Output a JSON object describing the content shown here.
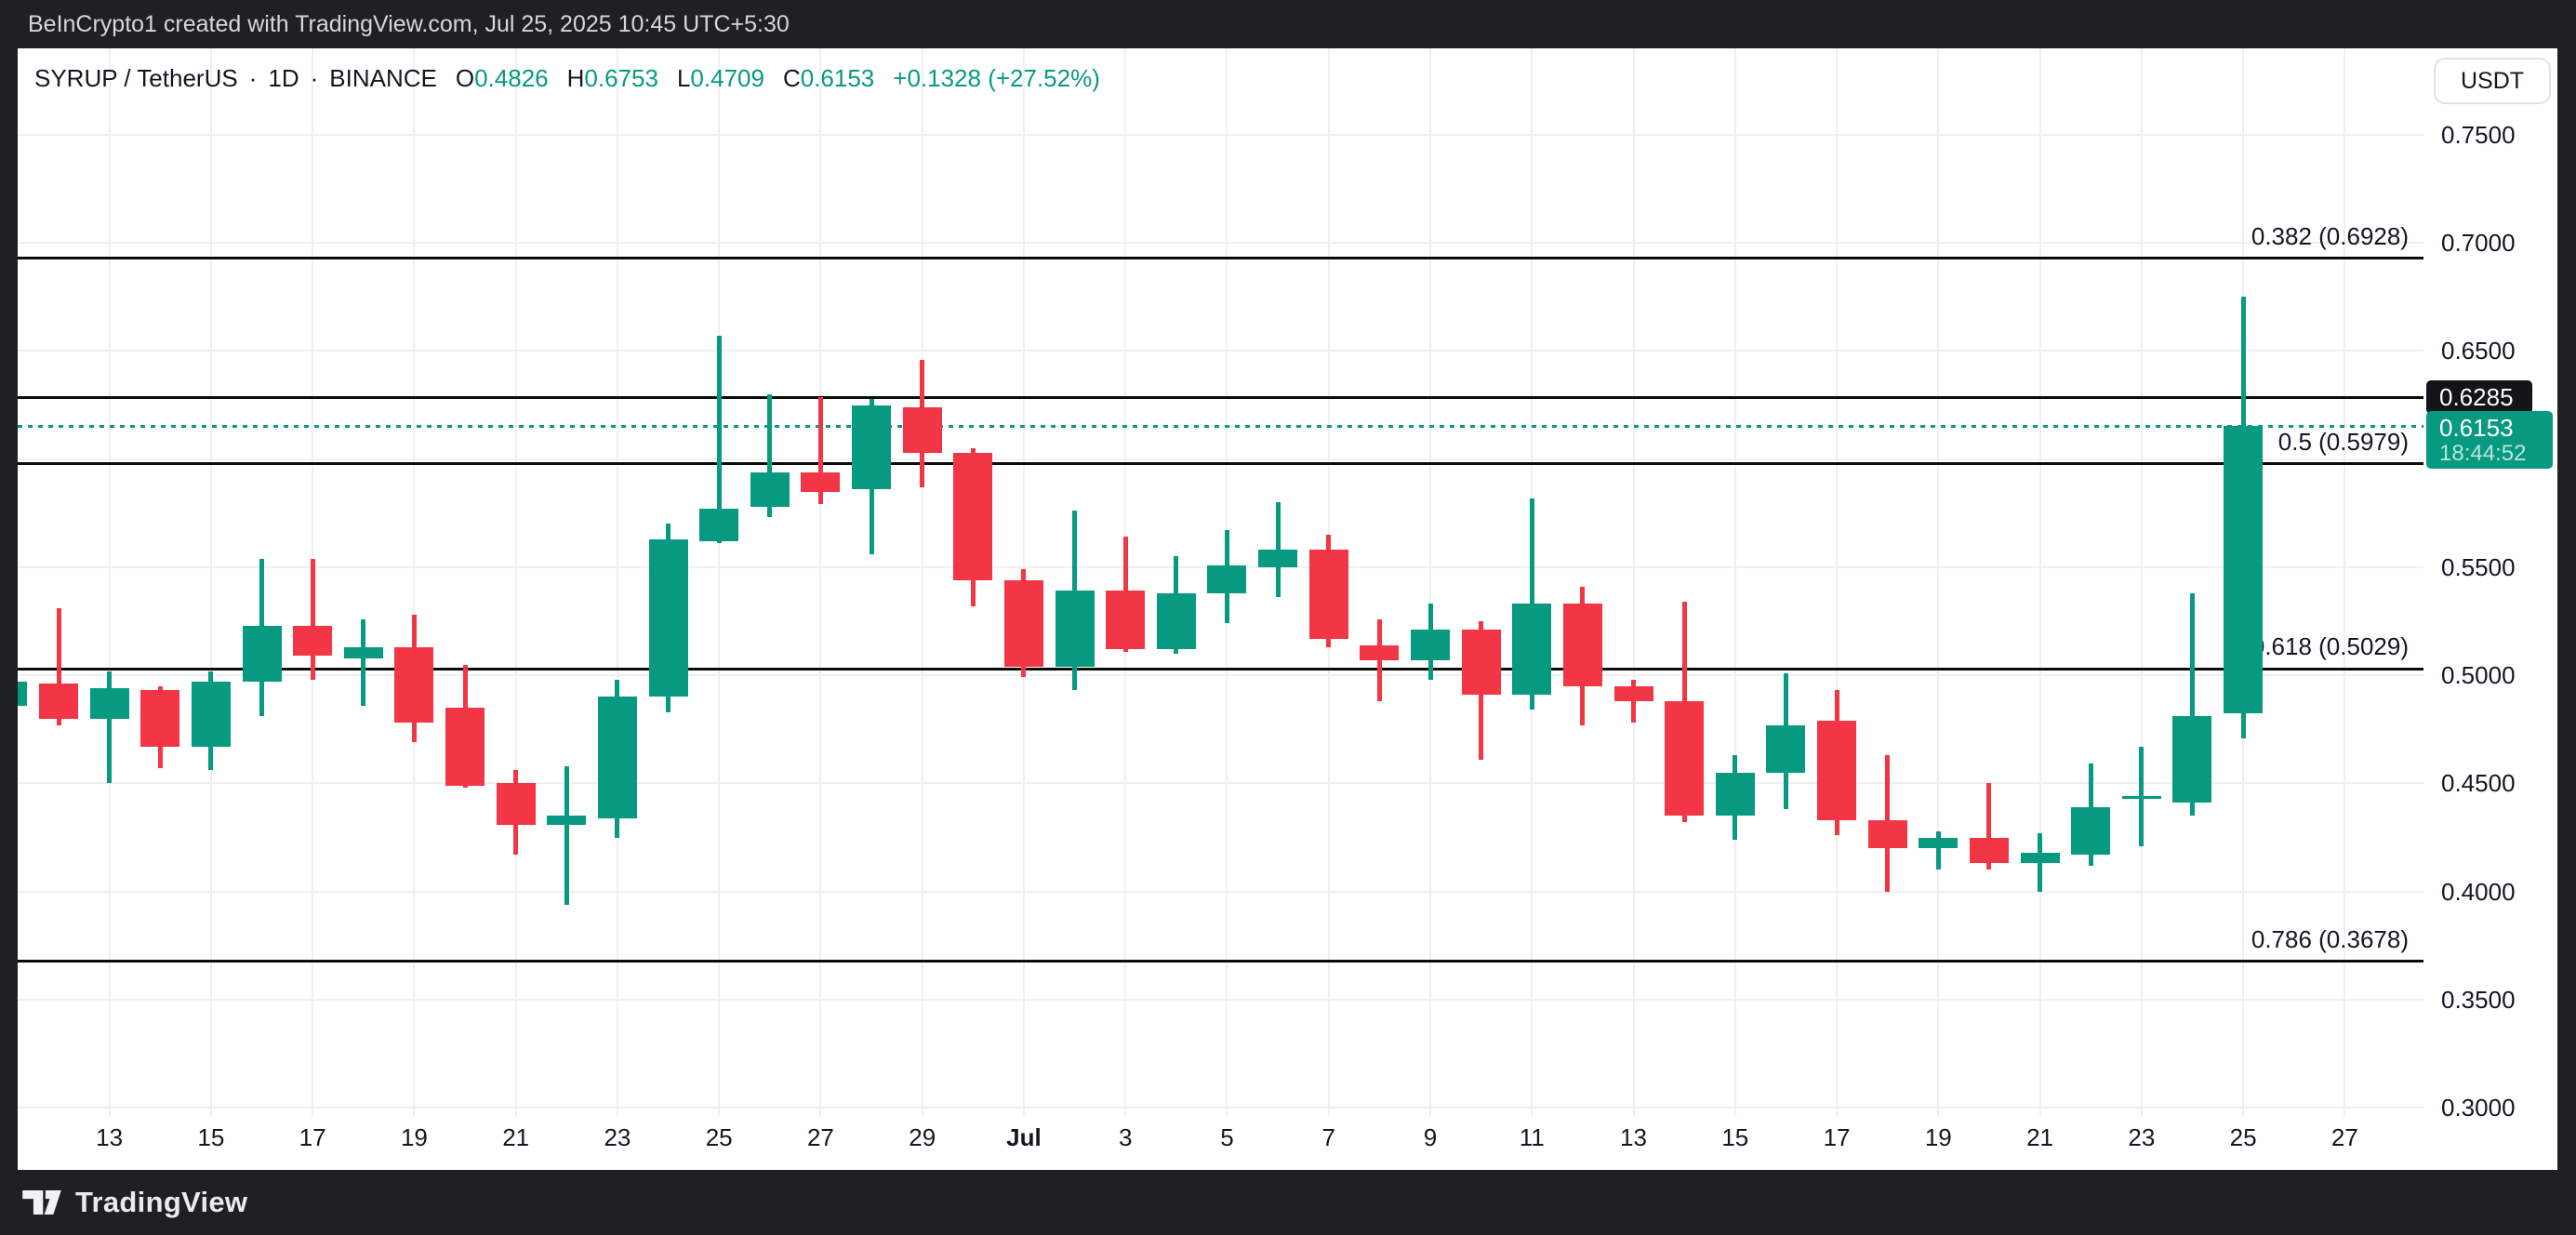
{
  "header": {
    "title": "BeInCrypto1 created with TradingView.com, Jul 25, 2025 10:45 UTC+5:30"
  },
  "toolbar": {
    "currency_button": "USDT"
  },
  "legend": {
    "symbol": "SYRUP / TetherUS",
    "separator": "·",
    "interval": "1D",
    "exchange": "BINANCE",
    "open_label": "O",
    "open": "0.4826",
    "high_label": "H",
    "high": "0.6753",
    "low_label": "L",
    "low": "0.4709",
    "close_label": "C",
    "close": "0.6153",
    "change": "+0.1328 (+27.52%)"
  },
  "footer": {
    "brand": "TradingView"
  },
  "colors": {
    "up": "#089981",
    "down": "#F23645",
    "frame": "#1e2025",
    "grid": "#eef0f3",
    "text": "#131722",
    "level_line": "#0b0b0b",
    "header_text": "#d5d7da"
  },
  "chart_data": {
    "type": "candlestick",
    "title": "SYRUP / TetherUS · 1D · BINANCE",
    "ylabel": "USDT",
    "y_visible_range": [
      0.272,
      0.791
    ],
    "grid": true,
    "price_ticks": [
      {
        "label": "0.7500",
        "price": 0.75
      },
      {
        "label": "0.7000",
        "price": 0.7
      },
      {
        "label": "0.6500",
        "price": 0.65
      },
      {
        "label": "0.5500",
        "price": 0.55
      },
      {
        "label": "0.5000",
        "price": 0.5
      },
      {
        "label": "0.4500",
        "price": 0.45
      },
      {
        "label": "0.4000",
        "price": 0.4
      },
      {
        "label": "0.3500",
        "price": 0.35
      },
      {
        "label": "0.3000",
        "price": 0.3
      }
    ],
    "price_grid": [
      0.75,
      0.7,
      0.65,
      0.6,
      0.55,
      0.5,
      0.45,
      0.4,
      0.35,
      0.3
    ],
    "time_ticks": [
      {
        "label": "13",
        "di": 1
      },
      {
        "label": "15",
        "di": 3
      },
      {
        "label": "17",
        "di": 5
      },
      {
        "label": "19",
        "di": 7
      },
      {
        "label": "21",
        "di": 9
      },
      {
        "label": "23",
        "di": 11
      },
      {
        "label": "25",
        "di": 13
      },
      {
        "label": "27",
        "di": 15
      },
      {
        "label": "29",
        "di": 17
      },
      {
        "label": "Jul",
        "di": 19,
        "bold": true
      },
      {
        "label": "3",
        "di": 21
      },
      {
        "label": "5",
        "di": 23
      },
      {
        "label": "7",
        "di": 25
      },
      {
        "label": "9",
        "di": 27
      },
      {
        "label": "11",
        "di": 29
      },
      {
        "label": "13",
        "di": 31
      },
      {
        "label": "15",
        "di": 33
      },
      {
        "label": "17",
        "di": 35
      },
      {
        "label": "19",
        "di": 37
      },
      {
        "label": "21",
        "di": 39
      },
      {
        "label": "23",
        "di": 41
      },
      {
        "label": "25",
        "di": 43
      },
      {
        "label": "27",
        "di": 45
      }
    ],
    "fib_levels": [
      {
        "label": "0.382 (0.6928)",
        "price": 0.6928
      },
      {
        "label": "0.5 (0.5979)",
        "price": 0.5979
      },
      {
        "label": "0.618 (0.5029)",
        "price": 0.5029
      },
      {
        "label": "0.786 (0.3678)",
        "price": 0.3678
      }
    ],
    "resistance_line": {
      "label": "0.6285",
      "price": 0.6285
    },
    "current_price": {
      "value": "0.6153",
      "countdown": "18:44:52",
      "price": 0.6153
    },
    "candles": [
      {
        "date": "Jun 11",
        "o": 0.486,
        "h": 0.497,
        "l": 0.4855,
        "c": 0.497
      },
      {
        "date": "Jun 12",
        "o": 0.496,
        "h": 0.531,
        "l": 0.477,
        "c": 0.48
      },
      {
        "date": "Jun 13",
        "o": 0.48,
        "h": 0.502,
        "l": 0.45,
        "c": 0.494
      },
      {
        "date": "Jun 14",
        "o": 0.493,
        "h": 0.495,
        "l": 0.457,
        "c": 0.467
      },
      {
        "date": "Jun 15",
        "o": 0.467,
        "h": 0.502,
        "l": 0.456,
        "c": 0.497
      },
      {
        "date": "Jun 16",
        "o": 0.497,
        "h": 0.554,
        "l": 0.481,
        "c": 0.523
      },
      {
        "date": "Jun 17",
        "o": 0.523,
        "h": 0.554,
        "l": 0.498,
        "c": 0.509
      },
      {
        "date": "Jun 18",
        "o": 0.508,
        "h": 0.526,
        "l": 0.486,
        "c": 0.513
      },
      {
        "date": "Jun 19",
        "o": 0.513,
        "h": 0.528,
        "l": 0.469,
        "c": 0.478
      },
      {
        "date": "Jun 20",
        "o": 0.485,
        "h": 0.505,
        "l": 0.448,
        "c": 0.449
      },
      {
        "date": "Jun 21",
        "o": 0.45,
        "h": 0.456,
        "l": 0.417,
        "c": 0.431
      },
      {
        "date": "Jun 22",
        "o": 0.431,
        "h": 0.458,
        "l": 0.394,
        "c": 0.435
      },
      {
        "date": "Jun 23",
        "o": 0.434,
        "h": 0.498,
        "l": 0.425,
        "c": 0.49
      },
      {
        "date": "Jun 24",
        "o": 0.49,
        "h": 0.57,
        "l": 0.483,
        "c": 0.563
      },
      {
        "date": "Jun 25",
        "o": 0.562,
        "h": 0.657,
        "l": 0.561,
        "c": 0.577
      },
      {
        "date": "Jun 26",
        "o": 0.578,
        "h": 0.63,
        "l": 0.573,
        "c": 0.594
      },
      {
        "date": "Jun 27",
        "o": 0.594,
        "h": 0.6285,
        "l": 0.579,
        "c": 0.585
      },
      {
        "date": "Jun 28",
        "o": 0.586,
        "h": 0.628,
        "l": 0.556,
        "c": 0.625
      },
      {
        "date": "Jun 29",
        "o": 0.624,
        "h": 0.646,
        "l": 0.587,
        "c": 0.603
      },
      {
        "date": "Jun 30",
        "o": 0.603,
        "h": 0.605,
        "l": 0.532,
        "c": 0.544
      },
      {
        "date": "Jul 1",
        "o": 0.544,
        "h": 0.549,
        "l": 0.499,
        "c": 0.504
      },
      {
        "date": "Jul 2",
        "o": 0.504,
        "h": 0.576,
        "l": 0.493,
        "c": 0.539
      },
      {
        "date": "Jul 3",
        "o": 0.539,
        "h": 0.564,
        "l": 0.511,
        "c": 0.512
      },
      {
        "date": "Jul 4",
        "o": 0.512,
        "h": 0.555,
        "l": 0.51,
        "c": 0.538
      },
      {
        "date": "Jul 5",
        "o": 0.538,
        "h": 0.567,
        "l": 0.524,
        "c": 0.551
      },
      {
        "date": "Jul 6",
        "o": 0.55,
        "h": 0.58,
        "l": 0.536,
        "c": 0.558
      },
      {
        "date": "Jul 7",
        "o": 0.558,
        "h": 0.565,
        "l": 0.513,
        "c": 0.517
      },
      {
        "date": "Jul 8",
        "o": 0.514,
        "h": 0.526,
        "l": 0.488,
        "c": 0.507
      },
      {
        "date": "Jul 9",
        "o": 0.507,
        "h": 0.533,
        "l": 0.498,
        "c": 0.521
      },
      {
        "date": "Jul 10",
        "o": 0.521,
        "h": 0.525,
        "l": 0.461,
        "c": 0.491
      },
      {
        "date": "Jul 11",
        "o": 0.491,
        "h": 0.582,
        "l": 0.484,
        "c": 0.533
      },
      {
        "date": "Jul 12",
        "o": 0.533,
        "h": 0.541,
        "l": 0.477,
        "c": 0.495
      },
      {
        "date": "Jul 13",
        "o": 0.495,
        "h": 0.498,
        "l": 0.478,
        "c": 0.488
      },
      {
        "date": "Jul 14",
        "o": 0.488,
        "h": 0.534,
        "l": 0.432,
        "c": 0.435
      },
      {
        "date": "Jul 15",
        "o": 0.435,
        "h": 0.463,
        "l": 0.424,
        "c": 0.455
      },
      {
        "date": "Jul 16",
        "o": 0.455,
        "h": 0.501,
        "l": 0.438,
        "c": 0.477
      },
      {
        "date": "Jul 17",
        "o": 0.479,
        "h": 0.493,
        "l": 0.426,
        "c": 0.433
      },
      {
        "date": "Jul 18",
        "o": 0.433,
        "h": 0.463,
        "l": 0.4,
        "c": 0.42
      },
      {
        "date": "Jul 19",
        "o": 0.42,
        "h": 0.428,
        "l": 0.41,
        "c": 0.425
      },
      {
        "date": "Jul 20",
        "o": 0.425,
        "h": 0.45,
        "l": 0.41,
        "c": 0.413
      },
      {
        "date": "Jul 21",
        "o": 0.413,
        "h": 0.427,
        "l": 0.4,
        "c": 0.418
      },
      {
        "date": "Jul 22",
        "o": 0.417,
        "h": 0.459,
        "l": 0.412,
        "c": 0.439
      },
      {
        "date": "Jul 23",
        "o": 0.443,
        "h": 0.467,
        "l": 0.421,
        "c": 0.444
      },
      {
        "date": "Jul 24",
        "o": 0.441,
        "h": 0.538,
        "l": 0.435,
        "c": 0.481
      },
      {
        "date": "Jul 25",
        "o": 0.4826,
        "h": 0.6753,
        "l": 0.4709,
        "c": 0.6153
      }
    ]
  }
}
